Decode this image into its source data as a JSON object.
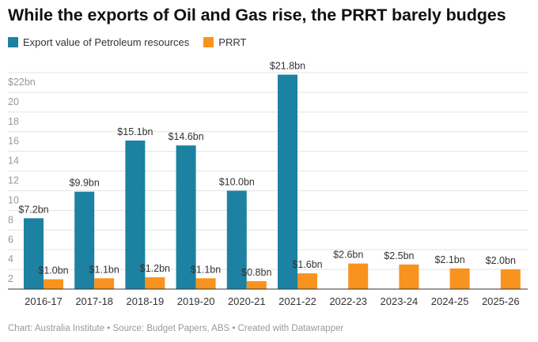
{
  "title": "While the exports of Oil and Gas rise, the PRRT barely budges",
  "footer": "Chart: Australia Institute • Source: Budget Papers, ABS • Created with Datawrapper",
  "chart_data": {
    "type": "bar",
    "title": "While the exports of Oil and Gas rise, the PRRT barely budges",
    "categories": [
      "2016-17",
      "2017-18",
      "2018-19",
      "2019-20",
      "2020-21",
      "2021-22",
      "2022-23",
      "2023-24",
      "2024-25",
      "2025-26"
    ],
    "series": [
      {
        "name": "Export value of Petroleum resources",
        "color": "#1d81a2",
        "values": [
          7.2,
          9.9,
          15.1,
          14.6,
          10.0,
          21.8,
          null,
          null,
          null,
          null
        ],
        "labels": [
          "$7.2bn",
          "$9.9bn",
          "$15.1bn",
          "$14.6bn",
          "$10.0bn",
          "$21.8bn",
          null,
          null,
          null,
          null
        ]
      },
      {
        "name": "PRRT",
        "color": "#f7931e",
        "values": [
          1.0,
          1.1,
          1.2,
          1.1,
          0.8,
          1.6,
          2.6,
          2.5,
          2.1,
          2.0
        ],
        "labels": [
          "$1.0bn",
          "$1.1bn",
          "$1.2bn",
          "$1.1bn",
          "$0.8bn",
          "$1.6bn",
          "$2.6bn",
          "$2.5bn",
          "$2.1bn",
          "$2.0bn"
        ]
      }
    ],
    "y_ticks": [
      0,
      2,
      4,
      6,
      8,
      10,
      12,
      14,
      16,
      18,
      20,
      22
    ],
    "y_tick_labels": [
      "",
      "2",
      "4",
      "6",
      "8",
      "10",
      "12",
      "14",
      "16",
      "18",
      "20",
      "$22bn"
    ],
    "ylim": [
      0,
      22
    ],
    "xlabel": "",
    "ylabel": "",
    "grid": true,
    "legend_position": "top-left"
  }
}
